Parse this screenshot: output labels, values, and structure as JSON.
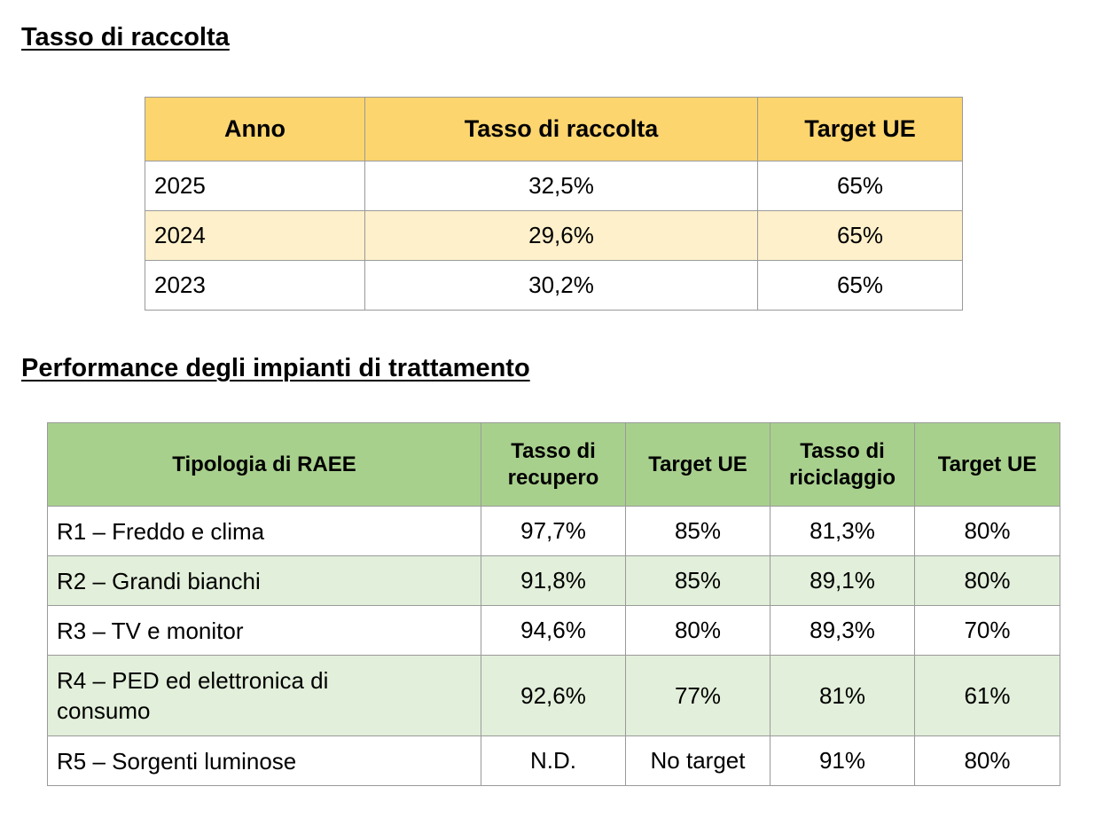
{
  "section1": {
    "title": "Tasso di raccolta",
    "headers": [
      "Anno",
      "Tasso di raccolta",
      "Target UE"
    ],
    "rows": [
      [
        "2025",
        "32,5%",
        "65%"
      ],
      [
        "2024",
        "29,6%",
        "65%"
      ],
      [
        "2023",
        "30,2%",
        "65%"
      ]
    ]
  },
  "section2": {
    "title": "Performance degli impianti di trattamento",
    "headers": [
      [
        "Tipologia di RAEE"
      ],
      [
        "Tasso di",
        "recupero"
      ],
      [
        "Target UE"
      ],
      [
        "Tasso di",
        "riciclaggio"
      ],
      [
        "Target UE"
      ]
    ],
    "rows": [
      {
        "name": [
          "R1 – Freddo e clima"
        ],
        "values": [
          "97,7%",
          "85%",
          "81,3%",
          "80%"
        ]
      },
      {
        "name": [
          "R2 – Grandi bianchi"
        ],
        "values": [
          "91,8%",
          "85%",
          "89,1%",
          "80%"
        ]
      },
      {
        "name": [
          "R3 – TV e monitor"
        ],
        "values": [
          "94,6%",
          "80%",
          "89,3%",
          "70%"
        ]
      },
      {
        "name": [
          "R4 – PED ed elettronica di",
          "consumo"
        ],
        "values": [
          "92,6%",
          "77%",
          "81%",
          "61%"
        ]
      },
      {
        "name": [
          "R5 – Sorgenti luminose"
        ],
        "values": [
          "N.D.",
          "No target",
          "91%",
          "80%"
        ]
      }
    ]
  }
}
